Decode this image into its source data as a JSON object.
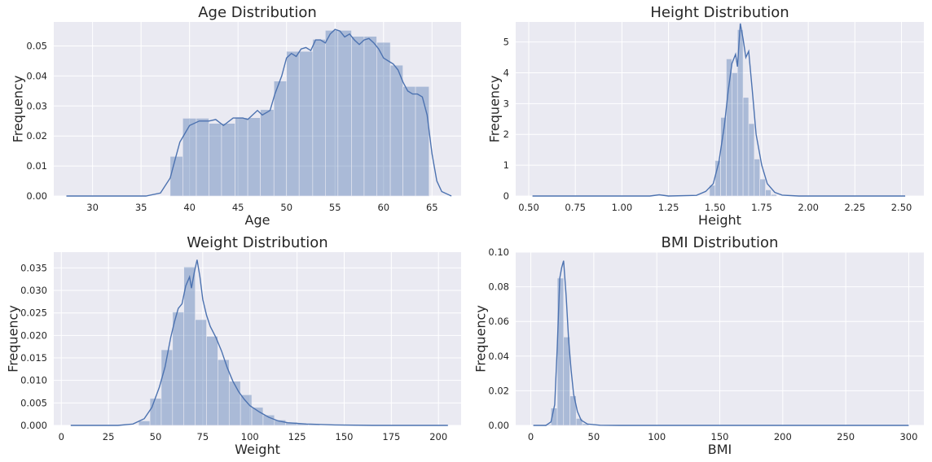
{
  "chart_data": [
    {
      "type": "bar",
      "title": "Age Distribution",
      "xlabel": "Age",
      "ylabel": "Frequency",
      "xlim": [
        26,
        68
      ],
      "ylim": [
        0,
        0.058
      ],
      "xticks": [
        30,
        35,
        40,
        45,
        50,
        55,
        60,
        65
      ],
      "yticks": [
        0.0,
        0.01,
        0.02,
        0.03,
        0.04,
        0.05
      ],
      "ytick_labels": [
        "0.00",
        "0.01",
        "0.02",
        "0.03",
        "0.04",
        "0.05"
      ],
      "bins": [
        {
          "x0": 38.0,
          "x1": 39.3,
          "value": 0.0132
        },
        {
          "x0": 39.3,
          "x1": 40.7,
          "value": 0.0259
        },
        {
          "x0": 40.7,
          "x1": 42.0,
          "value": 0.0259
        },
        {
          "x0": 42.0,
          "x1": 43.3,
          "value": 0.0242
        },
        {
          "x0": 43.3,
          "x1": 44.7,
          "value": 0.0242
        },
        {
          "x0": 44.7,
          "x1": 46.0,
          "value": 0.0261
        },
        {
          "x0": 46.0,
          "x1": 47.3,
          "value": 0.0261
        },
        {
          "x0": 47.3,
          "x1": 48.7,
          "value": 0.0288
        },
        {
          "x0": 48.7,
          "x1": 50.0,
          "value": 0.0383
        },
        {
          "x0": 50.0,
          "x1": 51.3,
          "value": 0.0482
        },
        {
          "x0": 51.3,
          "x1": 52.7,
          "value": 0.0482
        },
        {
          "x0": 52.7,
          "x1": 54.0,
          "value": 0.0522
        },
        {
          "x0": 54.0,
          "x1": 55.3,
          "value": 0.0552
        },
        {
          "x0": 55.3,
          "x1": 56.7,
          "value": 0.0552
        },
        {
          "x0": 56.7,
          "x1": 58.0,
          "value": 0.0532
        },
        {
          "x0": 58.0,
          "x1": 59.3,
          "value": 0.0532
        },
        {
          "x0": 59.3,
          "x1": 60.7,
          "value": 0.0512
        },
        {
          "x0": 60.7,
          "x1": 62.0,
          "value": 0.0436
        },
        {
          "x0": 62.0,
          "x1": 63.3,
          "value": 0.0365
        },
        {
          "x0": 63.3,
          "x1": 64.7,
          "value": 0.0365
        }
      ],
      "kde": [
        [
          27.3,
          0.0
        ],
        [
          35.5,
          0.0
        ],
        [
          37.0,
          0.001
        ],
        [
          38.0,
          0.006
        ],
        [
          38.5,
          0.012
        ],
        [
          39.0,
          0.018
        ],
        [
          40.0,
          0.0235
        ],
        [
          41.0,
          0.025
        ],
        [
          42.0,
          0.025
        ],
        [
          42.7,
          0.0255
        ],
        [
          43.5,
          0.0235
        ],
        [
          44.5,
          0.026
        ],
        [
          45.5,
          0.026
        ],
        [
          46.0,
          0.0255
        ],
        [
          46.5,
          0.027
        ],
        [
          47.0,
          0.0285
        ],
        [
          47.5,
          0.027
        ],
        [
          48.3,
          0.0285
        ],
        [
          48.8,
          0.034
        ],
        [
          49.5,
          0.04
        ],
        [
          50.0,
          0.046
        ],
        [
          50.5,
          0.0475
        ],
        [
          51.0,
          0.0465
        ],
        [
          51.5,
          0.049
        ],
        [
          52.0,
          0.0495
        ],
        [
          52.5,
          0.0485
        ],
        [
          53.0,
          0.052
        ],
        [
          53.5,
          0.052
        ],
        [
          54.0,
          0.051
        ],
        [
          54.5,
          0.054
        ],
        [
          55.0,
          0.0555
        ],
        [
          55.5,
          0.055
        ],
        [
          56.0,
          0.053
        ],
        [
          56.5,
          0.054
        ],
        [
          57.0,
          0.052
        ],
        [
          57.5,
          0.0505
        ],
        [
          58.0,
          0.052
        ],
        [
          58.5,
          0.0525
        ],
        [
          59.0,
          0.051
        ],
        [
          59.5,
          0.049
        ],
        [
          60.0,
          0.046
        ],
        [
          60.5,
          0.045
        ],
        [
          61.0,
          0.044
        ],
        [
          61.5,
          0.042
        ],
        [
          62.0,
          0.038
        ],
        [
          62.5,
          0.035
        ],
        [
          63.0,
          0.034
        ],
        [
          63.5,
          0.034
        ],
        [
          64.0,
          0.033
        ],
        [
          64.5,
          0.027
        ],
        [
          65.0,
          0.014
        ],
        [
          65.5,
          0.005
        ],
        [
          66.0,
          0.0015
        ],
        [
          67.0,
          0.0
        ]
      ]
    },
    {
      "type": "bar",
      "title": "Height Distribution",
      "xlabel": "Height",
      "ylabel": "Frequency",
      "xlim": [
        0.43,
        2.62
      ],
      "ylim": [
        0,
        5.65
      ],
      "xticks": [
        0.5,
        0.75,
        1.0,
        1.25,
        1.5,
        1.75,
        2.0,
        2.25,
        2.5
      ],
      "xtick_labels": [
        "0.50",
        "0.75",
        "1.00",
        "1.25",
        "1.50",
        "1.75",
        "2.00",
        "2.25",
        "2.50"
      ],
      "yticks": [
        0,
        1,
        2,
        3,
        4,
        5
      ],
      "ytick_labels": [
        "0",
        "1",
        "2",
        "3",
        "4",
        "5"
      ],
      "bins": [
        {
          "x0": 1.47,
          "x1": 1.5,
          "value": 0.35
        },
        {
          "x0": 1.5,
          "x1": 1.53,
          "value": 1.15
        },
        {
          "x0": 1.53,
          "x1": 1.56,
          "value": 2.55
        },
        {
          "x0": 1.56,
          "x1": 1.59,
          "value": 4.45
        },
        {
          "x0": 1.59,
          "x1": 1.62,
          "value": 4.0
        },
        {
          "x0": 1.62,
          "x1": 1.65,
          "value": 5.4
        },
        {
          "x0": 1.65,
          "x1": 1.68,
          "value": 3.2
        },
        {
          "x0": 1.68,
          "x1": 1.71,
          "value": 2.35
        },
        {
          "x0": 1.71,
          "x1": 1.74,
          "value": 1.2
        },
        {
          "x0": 1.74,
          "x1": 1.77,
          "value": 0.55
        },
        {
          "x0": 1.77,
          "x1": 1.8,
          "value": 0.2
        },
        {
          "x0": 1.8,
          "x1": 1.83,
          "value": 0.05
        }
      ],
      "kde": [
        [
          0.52,
          0.0
        ],
        [
          1.15,
          0.0
        ],
        [
          1.2,
          0.04
        ],
        [
          1.25,
          0.0
        ],
        [
          1.4,
          0.02
        ],
        [
          1.45,
          0.15
        ],
        [
          1.49,
          0.4
        ],
        [
          1.52,
          1.1
        ],
        [
          1.55,
          2.3
        ],
        [
          1.57,
          3.4
        ],
        [
          1.59,
          4.3
        ],
        [
          1.61,
          4.6
        ],
        [
          1.62,
          4.2
        ],
        [
          1.635,
          5.6
        ],
        [
          1.65,
          5.1
        ],
        [
          1.665,
          4.5
        ],
        [
          1.68,
          4.7
        ],
        [
          1.7,
          3.4
        ],
        [
          1.72,
          2.0
        ],
        [
          1.75,
          1.0
        ],
        [
          1.78,
          0.4
        ],
        [
          1.82,
          0.12
        ],
        [
          1.86,
          0.03
        ],
        [
          1.95,
          0.0
        ],
        [
          2.52,
          0.0
        ]
      ]
    },
    {
      "type": "bar",
      "title": "Weight Distribution",
      "xlabel": "Weight",
      "ylabel": "Frequency",
      "xlim": [
        -4,
        212
      ],
      "ylim": [
        0,
        0.0385
      ],
      "xticks": [
        0,
        25,
        50,
        75,
        100,
        125,
        150,
        175,
        200
      ],
      "yticks": [
        0.0,
        0.005,
        0.01,
        0.015,
        0.02,
        0.025,
        0.03,
        0.035
      ],
      "ytick_labels": [
        "0.000",
        "0.005",
        "0.010",
        "0.015",
        "0.020",
        "0.025",
        "0.030",
        "0.035"
      ],
      "bins": [
        {
          "x0": 41,
          "x1": 47,
          "value": 0.001
        },
        {
          "x0": 47,
          "x1": 53,
          "value": 0.006
        },
        {
          "x0": 53,
          "x1": 59,
          "value": 0.0168
        },
        {
          "x0": 59,
          "x1": 65,
          "value": 0.0252
        },
        {
          "x0": 65,
          "x1": 71,
          "value": 0.0352
        },
        {
          "x0": 71,
          "x1": 77,
          "value": 0.0235
        },
        {
          "x0": 77,
          "x1": 83,
          "value": 0.0198
        },
        {
          "x0": 83,
          "x1": 89,
          "value": 0.0146
        },
        {
          "x0": 89,
          "x1": 95,
          "value": 0.0098
        },
        {
          "x0": 95,
          "x1": 101,
          "value": 0.0068
        },
        {
          "x0": 101,
          "x1": 107,
          "value": 0.004
        },
        {
          "x0": 107,
          "x1": 113,
          "value": 0.0023
        },
        {
          "x0": 113,
          "x1": 119,
          "value": 0.0012
        },
        {
          "x0": 119,
          "x1": 125,
          "value": 0.0007
        },
        {
          "x0": 125,
          "x1": 131,
          "value": 0.0004
        },
        {
          "x0": 131,
          "x1": 137,
          "value": 0.0002
        }
      ],
      "kde": [
        [
          5,
          0.0
        ],
        [
          30,
          0.0
        ],
        [
          38,
          0.0003
        ],
        [
          44,
          0.0015
        ],
        [
          48,
          0.004
        ],
        [
          52,
          0.0085
        ],
        [
          55,
          0.013
        ],
        [
          58,
          0.0195
        ],
        [
          60,
          0.023
        ],
        [
          62,
          0.026
        ],
        [
          64,
          0.027
        ],
        [
          66,
          0.031
        ],
        [
          68,
          0.033
        ],
        [
          69,
          0.0305
        ],
        [
          70.5,
          0.034
        ],
        [
          72,
          0.0368
        ],
        [
          73.5,
          0.033
        ],
        [
          75,
          0.028
        ],
        [
          77,
          0.0245
        ],
        [
          79,
          0.022
        ],
        [
          82,
          0.0195
        ],
        [
          85,
          0.0165
        ],
        [
          88,
          0.0128
        ],
        [
          91,
          0.0098
        ],
        [
          94,
          0.0075
        ],
        [
          97,
          0.0058
        ],
        [
          100,
          0.0044
        ],
        [
          105,
          0.003
        ],
        [
          110,
          0.0018
        ],
        [
          115,
          0.001
        ],
        [
          120,
          0.0006
        ],
        [
          130,
          0.0003
        ],
        [
          145,
          0.0001
        ],
        [
          165,
          0.0
        ],
        [
          205,
          0.0
        ]
      ]
    },
    {
      "type": "bar",
      "title": "BMI Distribution",
      "xlabel": "BMI",
      "ylabel": "Frequency",
      "xlim": [
        -12,
        312
      ],
      "ylim": [
        0,
        0.1
      ],
      "xticks": [
        0,
        50,
        100,
        150,
        200,
        250,
        300
      ],
      "yticks": [
        0.0,
        0.02,
        0.04,
        0.06,
        0.08,
        0.1
      ],
      "ytick_labels": [
        "0.00",
        "0.02",
        "0.04",
        "0.06",
        "0.08",
        "0.10"
      ],
      "bins": [
        {
          "x0": 11,
          "x1": 16,
          "value": 0.0005
        },
        {
          "x0": 16,
          "x1": 21,
          "value": 0.01
        },
        {
          "x0": 21,
          "x1": 26,
          "value": 0.085
        },
        {
          "x0": 26,
          "x1": 31,
          "value": 0.051
        },
        {
          "x0": 31,
          "x1": 36,
          "value": 0.017
        },
        {
          "x0": 36,
          "x1": 41,
          "value": 0.004
        },
        {
          "x0": 41,
          "x1": 46,
          "value": 0.001
        }
      ],
      "kde": [
        [
          2,
          0.0
        ],
        [
          12,
          0.0
        ],
        [
          16,
          0.002
        ],
        [
          19,
          0.012
        ],
        [
          21,
          0.045
        ],
        [
          23,
          0.085
        ],
        [
          24.5,
          0.091
        ],
        [
          26,
          0.095
        ],
        [
          28,
          0.075
        ],
        [
          30,
          0.05
        ],
        [
          32,
          0.032
        ],
        [
          34,
          0.018
        ],
        [
          37,
          0.008
        ],
        [
          40,
          0.003
        ],
        [
          45,
          0.0008
        ],
        [
          55,
          0.0001
        ],
        [
          70,
          0.0
        ],
        [
          300,
          0.0
        ]
      ]
    }
  ]
}
